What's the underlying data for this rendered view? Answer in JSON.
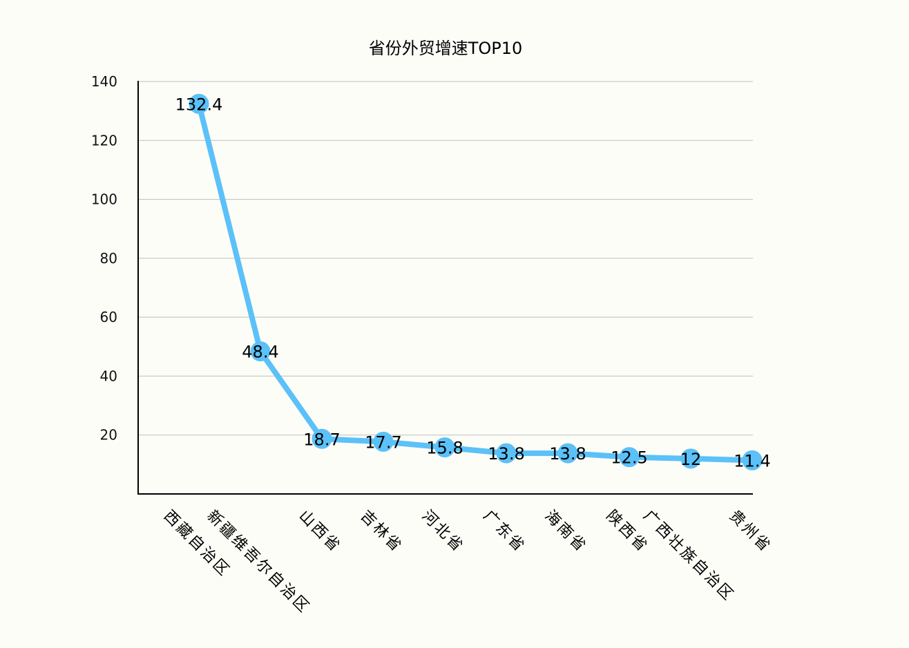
{
  "chart_data": {
    "type": "line",
    "title": "省份外贸增速TOP10",
    "categories": [
      "西藏自治区",
      "新疆维吾尔自治区",
      "山西省",
      "吉林省",
      "河北省",
      "广东省",
      "海南省",
      "陕西省",
      "广西壮族自治区",
      "贵州省"
    ],
    "values": [
      132.4,
      48.4,
      18.7,
      17.7,
      15.8,
      13.8,
      13.8,
      12.5,
      12,
      11.4
    ],
    "data_labels": [
      "132.4",
      "48.4",
      "18.7",
      "17.7",
      "15.8",
      "13.8",
      "13.8",
      "12.5",
      "12",
      "11.4"
    ],
    "xlabel": "",
    "ylabel": "",
    "ylim": [
      0,
      140
    ],
    "yticks": [
      "20",
      "40",
      "60",
      "80",
      "100",
      "120",
      "140"
    ],
    "grid": "horizontal",
    "colors": {
      "line": "#5bc1f8",
      "grid": "#bdbdbd",
      "axis": "#000000",
      "background": "#fdfdf8"
    }
  }
}
